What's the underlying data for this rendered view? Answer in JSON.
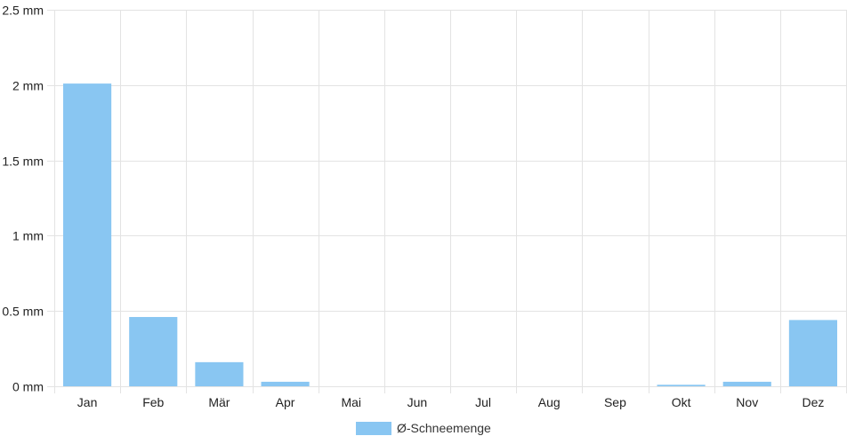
{
  "chart_data": {
    "type": "bar",
    "categories": [
      "Jan",
      "Feb",
      "Mär",
      "Apr",
      "Mai",
      "Jun",
      "Jul",
      "Aug",
      "Sep",
      "Okt",
      "Nov",
      "Dez"
    ],
    "series": [
      {
        "name": "Ø-Schneemenge",
        "values": [
          2.01,
          0.46,
          0.16,
          0.03,
          0,
          0,
          0,
          0,
          0,
          0.01,
          0.03,
          0.44
        ]
      }
    ],
    "ylim": [
      0,
      2.5
    ],
    "yticks": [
      0,
      0.5,
      1,
      1.5,
      2,
      2.5
    ],
    "ytick_labels": [
      "0 mm",
      "0.5 mm",
      "1 mm",
      "1.5 mm",
      "2 mm",
      "2.5 mm"
    ],
    "grid": true,
    "legend_position": "bottom-center",
    "colors": {
      "bar": "#89c6f2",
      "grid": "#e3e3e3",
      "axis": "#cccccc"
    }
  }
}
